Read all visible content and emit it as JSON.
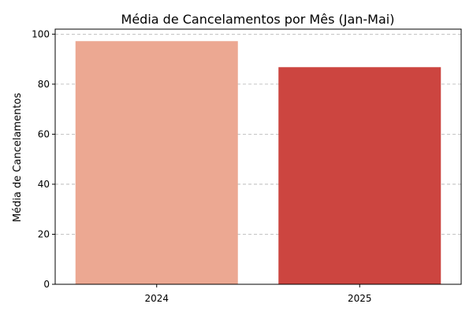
{
  "chart_data": {
    "type": "bar",
    "title": "Média de Cancelamentos por Mês (Jan-Mai)",
    "xlabel": "",
    "ylabel": "Média de Cancelamentos",
    "categories": [
      "2024",
      "2025"
    ],
    "values": [
      97.2,
      86.8
    ],
    "colors": [
      "#eca892",
      "#cc4540"
    ],
    "ylim": [
      0,
      102
    ],
    "yticks": [
      0,
      20,
      40,
      60,
      80,
      100
    ],
    "grid": "y-dashed",
    "legend": "none"
  }
}
